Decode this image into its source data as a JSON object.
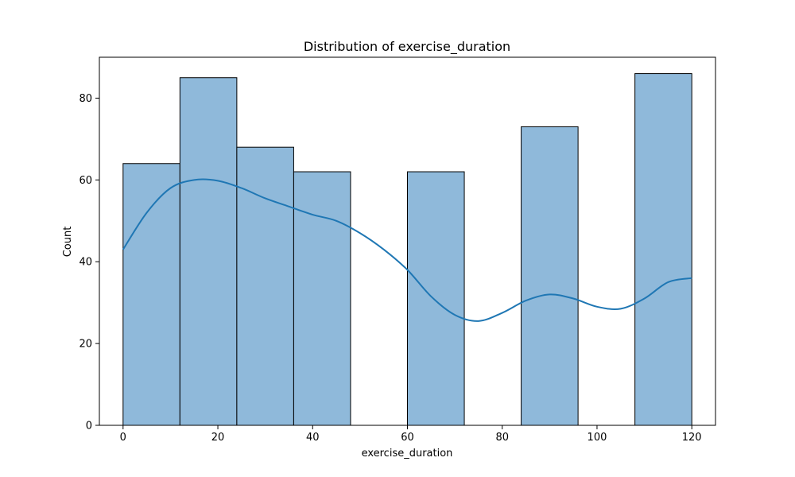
{
  "chart_data": {
    "type": "bar",
    "title": "Distribution of exercise_duration",
    "xlabel": "exercise_duration",
    "ylabel": "Count",
    "xlim": [
      -5,
      125
    ],
    "ylim": [
      0,
      90
    ],
    "xticks": [
      0,
      20,
      40,
      60,
      80,
      100,
      120
    ],
    "yticks": [
      0,
      20,
      40,
      60,
      80
    ],
    "bins": [
      {
        "x0": 0,
        "x1": 12,
        "count": 64
      },
      {
        "x0": 12,
        "x1": 24,
        "count": 85
      },
      {
        "x0": 24,
        "x1": 36,
        "count": 68
      },
      {
        "x0": 36,
        "x1": 48,
        "count": 62
      },
      {
        "x0": 48,
        "x1": 60,
        "count": 0
      },
      {
        "x0": 60,
        "x1": 72,
        "count": 62
      },
      {
        "x0": 72,
        "x1": 84,
        "count": 0
      },
      {
        "x0": 84,
        "x1": 96,
        "count": 73
      },
      {
        "x0": 96,
        "x1": 108,
        "count": 0
      },
      {
        "x0": 108,
        "x1": 120,
        "count": 86
      }
    ],
    "kde": {
      "x": [
        0,
        5,
        10,
        15,
        20,
        25,
        30,
        35,
        40,
        45,
        50,
        55,
        60,
        65,
        70,
        75,
        80,
        85,
        90,
        95,
        100,
        105,
        110,
        115,
        120
      ],
      "y": [
        43,
        52,
        58,
        60,
        59.8,
        58,
        55.5,
        53.5,
        51.5,
        50,
        47,
        43,
        38,
        31.5,
        27,
        25.5,
        27.5,
        30.5,
        32,
        31,
        29,
        28.5,
        31,
        35,
        36
      ]
    },
    "grid": false,
    "colors": {
      "bar_fill": "#8fb9da",
      "bar_edge": "#000000",
      "kde_line": "#1f77b4"
    }
  }
}
